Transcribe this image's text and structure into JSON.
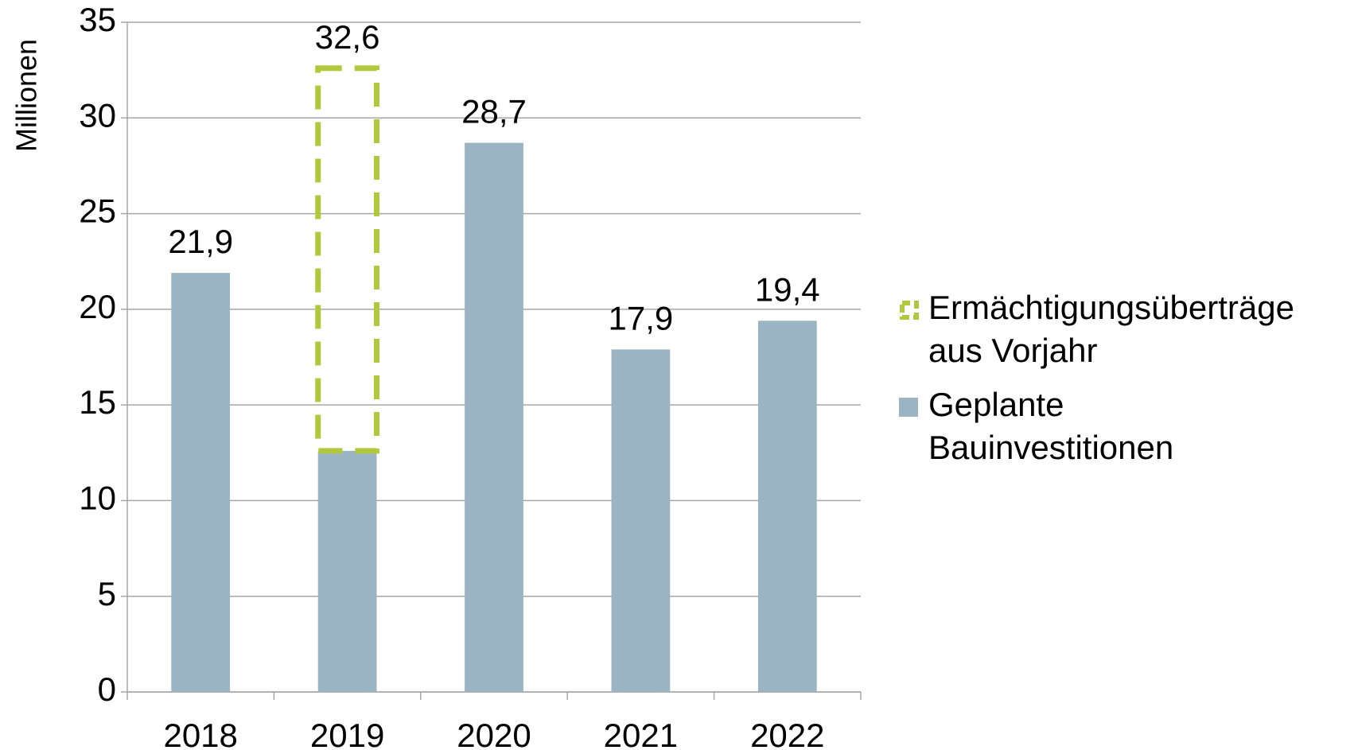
{
  "chart_data": {
    "type": "stacked_bar",
    "y_axis_label": "Millionen",
    "categories": [
      "2018",
      "2019",
      "2020",
      "2021",
      "2022"
    ],
    "series": [
      {
        "name": "Geplante Bauinvestitionen",
        "color": "#9bb4c4",
        "values": [
          21.9,
          12.6,
          28.7,
          17.9,
          19.4
        ]
      },
      {
        "name": "Ermächtigungsüberträge aus Vorjahr",
        "color": "#b2c83c",
        "style": "dashed",
        "values": [
          null,
          20.0,
          null,
          null,
          null
        ]
      }
    ],
    "totals": [
      21.9,
      32.6,
      28.7,
      17.9,
      19.4
    ],
    "total_labels": [
      "21,9",
      "32,6",
      "28,7",
      "17,9",
      "19,4"
    ],
    "ylim": [
      0,
      35
    ],
    "yticks": [
      0,
      5,
      10,
      15,
      20,
      25,
      30,
      35
    ],
    "grid": true,
    "legend": "right"
  }
}
